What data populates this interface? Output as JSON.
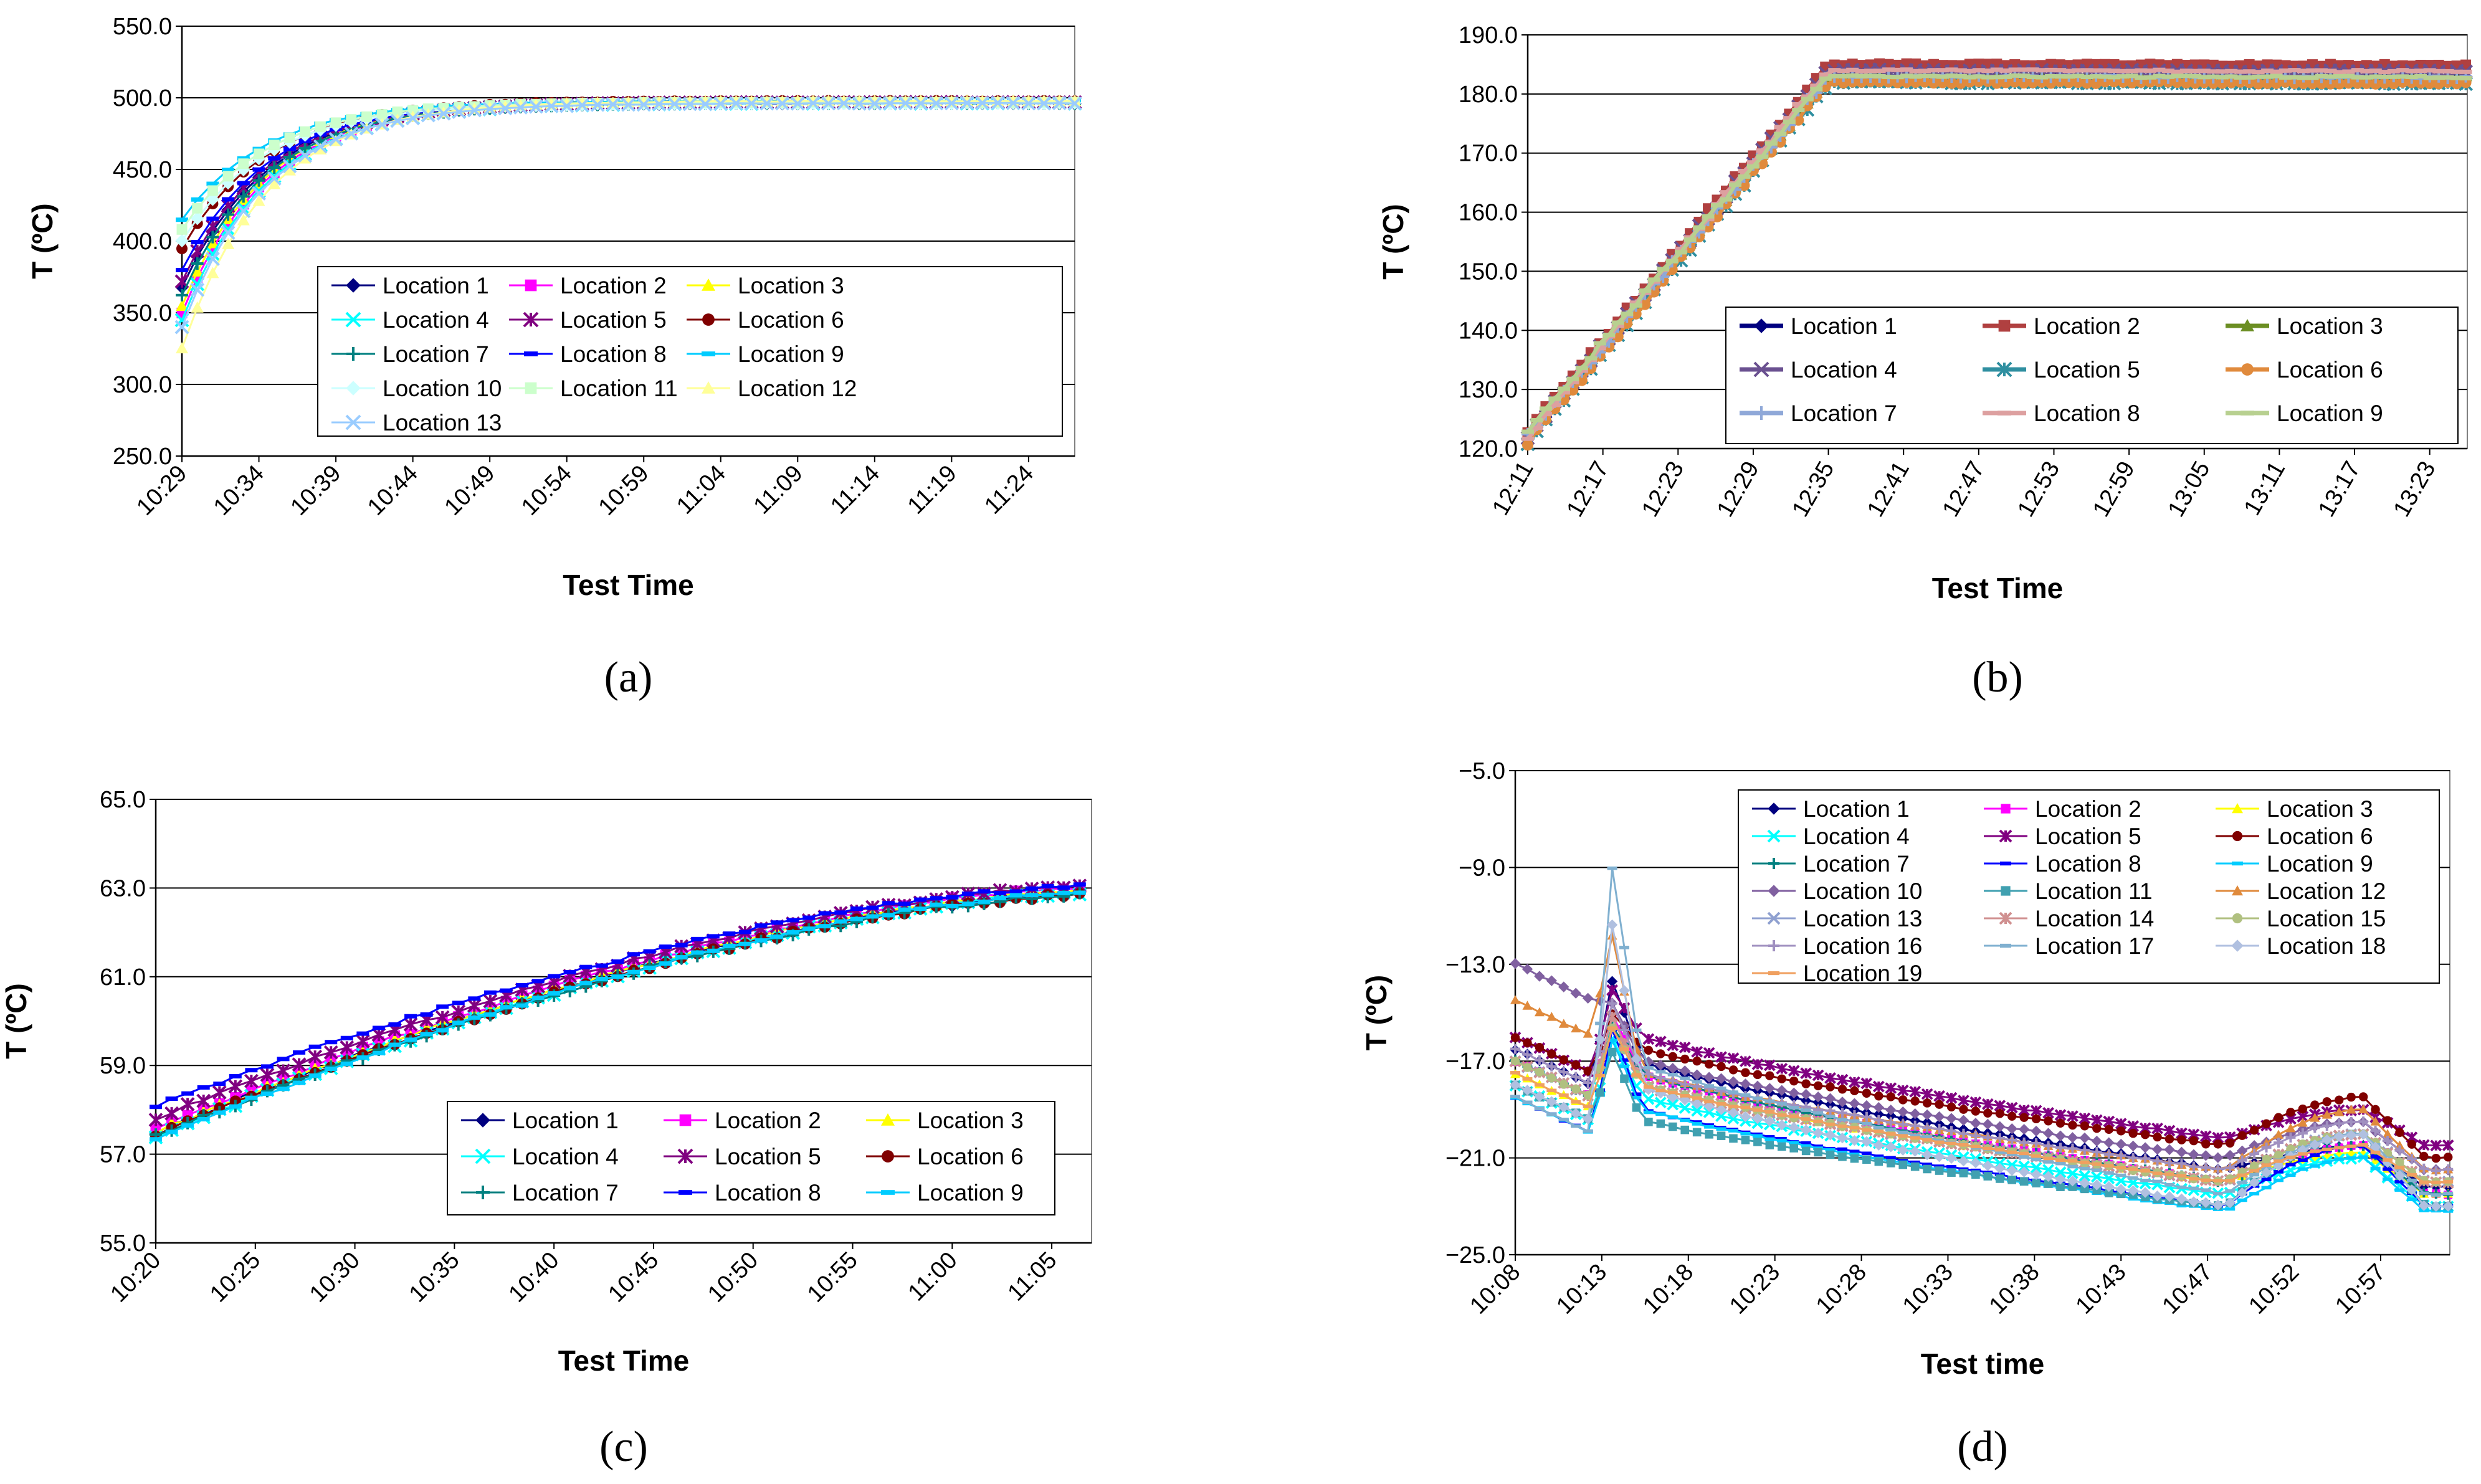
{
  "chart_data": [
    {
      "type": "line",
      "caption": "(a)",
      "xlabel": "Test Time",
      "ylabel": "T (ºC)",
      "yticks": [
        "550.0",
        "500.0",
        "450.0",
        "400.0",
        "350.0",
        "300.0",
        "250.0"
      ],
      "ylim": [
        250,
        550
      ],
      "xticks": [
        "10:29",
        "10:34",
        "10:39",
        "10:44",
        "10:49",
        "10:54",
        "10:59",
        "11:04",
        "11:09",
        "11:14",
        "11:19",
        "11:24"
      ],
      "legend_position": "lower-right",
      "legend_cols": 3,
      "profile": {
        "kind": "exp",
        "t_ticks": 11.6,
        "start_ticks": 0,
        "tau": 5.5,
        "final": 497,
        "spread": 1.5,
        "step": 0.2
      },
      "series": [
        {
          "name": "Location 1",
          "color": "#000080",
          "marker": "diamond",
          "start": 368
        },
        {
          "name": "Location 2",
          "color": "#ff00ff",
          "marker": "square",
          "start": 350
        },
        {
          "name": "Location 3",
          "color": "#ffff00",
          "marker": "triangle",
          "start": 355
        },
        {
          "name": "Location 4",
          "color": "#00ffff",
          "marker": "x",
          "start": 345
        },
        {
          "name": "Location 5",
          "color": "#800080",
          "marker": "asterisk",
          "start": 372
        },
        {
          "name": "Location 6",
          "color": "#800000",
          "marker": "circle",
          "start": 395
        },
        {
          "name": "Location 7",
          "color": "#008080",
          "marker": "plus",
          "start": 362
        },
        {
          "name": "Location 8",
          "color": "#0000ff",
          "marker": "dash",
          "start": 380
        },
        {
          "name": "Location 9",
          "color": "#00ccff",
          "marker": "dash",
          "start": 415
        },
        {
          "name": "Location 10",
          "color": "#ccffff",
          "marker": "diamond",
          "start": 400
        },
        {
          "name": "Location 11",
          "color": "#ccffcc",
          "marker": "square",
          "start": 408
        },
        {
          "name": "Location 12",
          "color": "#ffff99",
          "marker": "triangle",
          "start": 325
        },
        {
          "name": "Location 13",
          "color": "#99ccff",
          "marker": "x",
          "start": 340
        }
      ]
    },
    {
      "type": "line",
      "caption": "(b)",
      "xlabel": "Test Time",
      "ylabel": "T (ºC)",
      "yticks": [
        "190.0",
        "180.0",
        "170.0",
        "160.0",
        "150.0",
        "140.0",
        "130.0",
        "120.0"
      ],
      "ylim": [
        120,
        190
      ],
      "xticks": [
        "12:11",
        "12:17",
        "12:23",
        "12:29",
        "12:35",
        "12:41",
        "12:47",
        "12:53",
        "12:59",
        "13:05",
        "13:11",
        "13:17",
        "13:23"
      ],
      "legend_position": "lower-right",
      "legend_cols": 3,
      "profile": {
        "kind": "ramp",
        "t_ticks": 12.5,
        "start_ticks": 0,
        "plateau_ticks": 4.0,
        "spread": 1.5,
        "step": 0.12
      },
      "series": [
        {
          "name": "Location 1",
          "color": "#000080",
          "marker": "diamond",
          "start": 122,
          "final": 183
        },
        {
          "name": "Location 2",
          "color": "#b04040",
          "marker": "square",
          "start": 123,
          "final": 185
        },
        {
          "name": "Location 3",
          "color": "#6b8e23",
          "marker": "triangle",
          "start": 122,
          "final": 183
        },
        {
          "name": "Location 4",
          "color": "#6a5090",
          "marker": "x",
          "start": 122,
          "final": 184
        },
        {
          "name": "Location 5",
          "color": "#2f8fa0",
          "marker": "asterisk",
          "start": 121,
          "final": 182
        },
        {
          "name": "Location 6",
          "color": "#e08a3c",
          "marker": "circle",
          "start": 121,
          "final": 182
        },
        {
          "name": "Location 7",
          "color": "#8fa8d8",
          "marker": "plus",
          "start": 122,
          "final": 183
        },
        {
          "name": "Location 8",
          "color": "#dda0a0",
          "marker": "dash",
          "start": 122,
          "final": 184
        },
        {
          "name": "Location 9",
          "color": "#b8d090",
          "marker": "dash",
          "start": 123,
          "final": 183
        }
      ]
    },
    {
      "type": "line",
      "caption": "(c)",
      "xlabel": "Test Time",
      "ylabel": "T (ºC)",
      "yticks": [
        "65.0",
        "63.0",
        "61.0",
        "59.0",
        "57.0",
        "55.0"
      ],
      "ylim": [
        55,
        65
      ],
      "xticks": [
        "10:20",
        "10:25",
        "10:30",
        "10:35",
        "10:40",
        "10:45",
        "10:50",
        "10:55",
        "11:00",
        "11:05"
      ],
      "legend_position": "lower-right",
      "legend_cols": 3,
      "profile": {
        "kind": "smooth",
        "t_ticks": 9.4,
        "start_ticks": 0,
        "spread": 0.25,
        "step": 0.16
      },
      "series": [
        {
          "name": "Location 1",
          "color": "#000080",
          "marker": "diamond",
          "start": 57.5,
          "final": 62.9
        },
        {
          "name": "Location 2",
          "color": "#ff00ff",
          "marker": "square",
          "start": 57.6,
          "final": 63.0
        },
        {
          "name": "Location 3",
          "color": "#ffff00",
          "marker": "triangle",
          "start": 57.5,
          "final": 62.95
        },
        {
          "name": "Location 4",
          "color": "#00ffff",
          "marker": "x",
          "start": 57.4,
          "final": 62.9
        },
        {
          "name": "Location 5",
          "color": "#800080",
          "marker": "asterisk",
          "start": 57.8,
          "final": 63.05
        },
        {
          "name": "Location 6",
          "color": "#800000",
          "marker": "circle",
          "start": 57.45,
          "final": 62.85
        },
        {
          "name": "Location 7",
          "color": "#008080",
          "marker": "plus",
          "start": 57.4,
          "final": 62.85
        },
        {
          "name": "Location 8",
          "color": "#0000ff",
          "marker": "dash",
          "start": 58.1,
          "final": 63.05
        },
        {
          "name": "Location 9",
          "color": "#00ccff",
          "marker": "dash",
          "start": 57.35,
          "final": 62.9
        }
      ]
    },
    {
      "type": "line",
      "caption": "(d)",
      "xlabel": "Test time",
      "ylabel": "T (ºC)",
      "yticks": [
        "−5.0",
        "−9.0",
        "−13.0",
        "−17.0",
        "−21.0",
        "−25.0"
      ],
      "ylim": [
        -25,
        -5
      ],
      "xticks": [
        "10:08",
        "10:13",
        "10:18",
        "10:23",
        "10:28",
        "10:33",
        "10:38",
        "10:43",
        "10:47",
        "10:52",
        "10:57"
      ],
      "legend_position": "upper-right",
      "legend_cols": 3,
      "profile": {
        "kind": "cooling",
        "t_ticks": 10.8,
        "start_ticks": 0,
        "spike_tick": 1.1,
        "dip_tick": 0.9,
        "low_tick": 8.2,
        "bump_tick": 9.8,
        "spread": 0.4,
        "step": 0.14
      },
      "series": [
        {
          "name": "Location 1",
          "color": "#000080",
          "marker": "diamond",
          "start": -16.5,
          "spike": -13.5,
          "after": -16.5,
          "low": -21.5,
          "bump": -20.5,
          "end": -22.2
        },
        {
          "name": "Location 2",
          "color": "#ff00ff",
          "marker": "square",
          "start": -17.0,
          "spike": -15.0,
          "after": -17.0,
          "low": -22.0,
          "bump": -20.5,
          "end": -22.5
        },
        {
          "name": "Location 3",
          "color": "#ffff00",
          "marker": "triangle",
          "start": -17.5,
          "spike": -15.5,
          "after": -17.5,
          "low": -22.0,
          "bump": -20.8,
          "end": -22.5
        },
        {
          "name": "Location 4",
          "color": "#00ffff",
          "marker": "x",
          "start": -18.0,
          "spike": -16.0,
          "after": -18.0,
          "low": -22.5,
          "bump": -21.0,
          "end": -23.0
        },
        {
          "name": "Location 5",
          "color": "#800080",
          "marker": "asterisk",
          "start": -16.0,
          "spike": -14.0,
          "after": -15.5,
          "low": -20.2,
          "bump": -19.0,
          "end": -20.5
        },
        {
          "name": "Location 6",
          "color": "#800000",
          "marker": "circle",
          "start": -16.0,
          "spike": -15.0,
          "after": -16.0,
          "low": -20.5,
          "bump": -18.5,
          "end": -21.0
        },
        {
          "name": "Location 7",
          "color": "#008080",
          "marker": "plus",
          "start": -17.0,
          "spike": -15.5,
          "after": -17.0,
          "low": -22.0,
          "bump": -20.5,
          "end": -22.5
        },
        {
          "name": "Location 8",
          "color": "#0000ff",
          "marker": "dash",
          "start": -18.5,
          "spike": -15.5,
          "after": -18.5,
          "low": -23.0,
          "bump": -20.5,
          "end": -23.0
        },
        {
          "name": "Location 9",
          "color": "#00ccff",
          "marker": "dash",
          "start": -18.5,
          "spike": -16.0,
          "after": -18.5,
          "low": -23.2,
          "bump": -21.0,
          "end": -23.2
        },
        {
          "name": "Location 10",
          "color": "#8060a0",
          "marker": "diamond",
          "start": -13.0,
          "spike": -14.5,
          "after": -16.5,
          "low": -21.0,
          "bump": -19.5,
          "end": -21.5
        },
        {
          "name": "Location 11",
          "color": "#40a0b0",
          "marker": "square",
          "start": -18.0,
          "spike": -16.5,
          "after": -19.0,
          "low": -23.0,
          "bump": -20.0,
          "end": -23.0
        },
        {
          "name": "Location 12",
          "color": "#e08a3c",
          "marker": "triangle",
          "start": -14.5,
          "spike": -11.5,
          "after": -17.0,
          "low": -21.5,
          "bump": -19.0,
          "end": -21.5
        },
        {
          "name": "Location 13",
          "color": "#8fa0d0",
          "marker": "x",
          "start": -17.0,
          "spike": -15.0,
          "after": -17.5,
          "low": -22.0,
          "bump": -20.0,
          "end": -22.0
        },
        {
          "name": "Location 14",
          "color": "#d09090",
          "marker": "asterisk",
          "start": -17.0,
          "spike": -15.0,
          "after": -17.5,
          "low": -22.0,
          "bump": -20.0,
          "end": -22.0
        },
        {
          "name": "Location 15",
          "color": "#b0c080",
          "marker": "circle",
          "start": -17.0,
          "spike": -15.5,
          "after": -17.5,
          "low": -22.0,
          "bump": -20.0,
          "end": -22.0
        },
        {
          "name": "Location 16",
          "color": "#a090c0",
          "marker": "plus",
          "start": -16.5,
          "spike": -14.5,
          "after": -17.0,
          "low": -21.5,
          "bump": -19.5,
          "end": -21.5
        },
        {
          "name": "Location 17",
          "color": "#80b0d0",
          "marker": "dash",
          "start": -18.5,
          "spike": -8.6,
          "after": -16.5,
          "low": -22.5,
          "bump": -20.0,
          "end": -22.5
        },
        {
          "name": "Location 18",
          "color": "#b0c0e0",
          "marker": "diamond",
          "start": -18.0,
          "spike": -11.0,
          "after": -17.5,
          "low": -23.0,
          "bump": -20.0,
          "end": -23.0
        },
        {
          "name": "Location 19",
          "color": "#f0a060",
          "marker": "dash",
          "start": -17.5,
          "spike": -15.5,
          "after": -17.5,
          "low": -22.0,
          "bump": -20.5,
          "end": -22.0
        }
      ]
    }
  ]
}
